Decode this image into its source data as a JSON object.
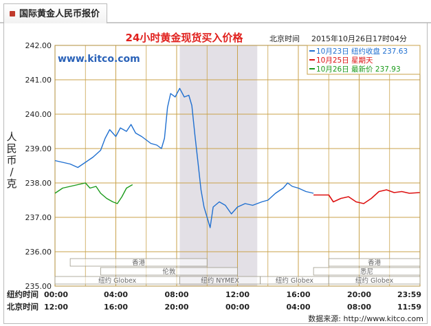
{
  "tab": {
    "label": "国际黄金人民币报价"
  },
  "chart_data": {
    "type": "line",
    "title": "24小时黄金现货买入价格",
    "watermark": "www.kitco.com",
    "timestamp_label": "北京时间",
    "timestamp_value": "2015年10月26日17时04分",
    "ylabel": "人民币/克",
    "ylim": [
      235.0,
      242.0
    ],
    "y_ticks": [
      "242.00",
      "241.00",
      "240.00",
      "239.00",
      "238.00",
      "237.00",
      "236.00",
      "235.00"
    ],
    "x_rows": [
      {
        "label": "纽约时间",
        "ticks": [
          "00:00",
          "04:00",
          "08:00",
          "12:00",
          "16:00",
          "20:00",
          "23:59"
        ]
      },
      {
        "label": "北京时间",
        "ticks": [
          "12:00",
          "16:00",
          "20:00",
          "00:00",
          "04:00",
          "08:00",
          "11:59"
        ]
      }
    ],
    "x_unit": "hours since 00:00 纽约时间",
    "shaded_x_range": [
      8.2,
      13.3
    ],
    "legend": [
      {
        "text": "10月23日  纽约收盘 237.63",
        "color": "#1f6fd0"
      },
      {
        "text": "10月25日  星期天",
        "color": "#dd1111"
      },
      {
        "text": "10月26日  最新价 237.93",
        "color": "#1a9a1a"
      }
    ],
    "series": [
      {
        "color": "#1f6fd0",
        "points": [
          [
            0,
            238.65
          ],
          [
            0.5,
            238.6
          ],
          [
            1,
            238.55
          ],
          [
            1.5,
            238.45
          ],
          [
            2,
            238.6
          ],
          [
            2.5,
            238.75
          ],
          [
            3,
            238.95
          ],
          [
            3.3,
            239.3
          ],
          [
            3.6,
            239.55
          ],
          [
            4,
            239.35
          ],
          [
            4.3,
            239.6
          ],
          [
            4.7,
            239.5
          ],
          [
            5,
            239.7
          ],
          [
            5.3,
            239.45
          ],
          [
            5.7,
            239.35
          ],
          [
            6,
            239.25
          ],
          [
            6.3,
            239.15
          ],
          [
            6.7,
            239.1
          ],
          [
            7,
            239.0
          ],
          [
            7.2,
            239.3
          ],
          [
            7.4,
            240.2
          ],
          [
            7.6,
            240.6
          ],
          [
            7.9,
            240.5
          ],
          [
            8.2,
            240.75
          ],
          [
            8.5,
            240.5
          ],
          [
            8.8,
            240.55
          ],
          [
            9.0,
            240.25
          ],
          [
            9.2,
            239.4
          ],
          [
            9.4,
            238.6
          ],
          [
            9.6,
            237.8
          ],
          [
            9.8,
            237.3
          ],
          [
            10.0,
            237.0
          ],
          [
            10.2,
            236.7
          ],
          [
            10.4,
            237.3
          ],
          [
            10.8,
            237.45
          ],
          [
            11.2,
            237.35
          ],
          [
            11.6,
            237.1
          ],
          [
            12.0,
            237.3
          ],
          [
            12.5,
            237.4
          ],
          [
            13.0,
            237.35
          ],
          [
            13.6,
            237.45
          ],
          [
            14.0,
            237.5
          ],
          [
            14.5,
            237.7
          ],
          [
            15.0,
            237.85
          ],
          [
            15.3,
            238.0
          ],
          [
            15.6,
            237.9
          ],
          [
            16.0,
            237.85
          ],
          [
            16.5,
            237.75
          ],
          [
            17.0,
            237.7
          ]
        ]
      },
      {
        "color": "#dd1111",
        "points": [
          [
            17.0,
            237.65
          ],
          [
            18.0,
            237.65
          ],
          [
            18.3,
            237.45
          ],
          [
            18.8,
            237.55
          ],
          [
            19.3,
            237.6
          ],
          [
            19.8,
            237.45
          ],
          [
            20.3,
            237.4
          ],
          [
            20.8,
            237.55
          ],
          [
            21.3,
            237.75
          ],
          [
            21.8,
            237.8
          ],
          [
            22.3,
            237.72
          ],
          [
            22.8,
            237.75
          ],
          [
            23.3,
            237.7
          ],
          [
            23.98,
            237.72
          ]
        ]
      },
      {
        "color": "#1a9a1a",
        "points": [
          [
            0,
            237.7
          ],
          [
            0.5,
            237.85
          ],
          [
            1,
            237.9
          ],
          [
            1.5,
            237.95
          ],
          [
            2,
            238.0
          ],
          [
            2.3,
            237.85
          ],
          [
            2.7,
            237.9
          ],
          [
            3,
            237.7
          ],
          [
            3.4,
            237.55
          ],
          [
            3.8,
            237.45
          ],
          [
            4.1,
            237.4
          ],
          [
            4.4,
            237.6
          ],
          [
            4.7,
            237.85
          ],
          [
            5.1,
            237.95
          ]
        ]
      }
    ],
    "market_bars": [
      {
        "name": "香港",
        "start": 1.0,
        "end": 10.0,
        "lane": 0
      },
      {
        "name": "香港",
        "start": 18.0,
        "end": 24.0,
        "lane": 0
      },
      {
        "name": "伦敦",
        "start": 3.0,
        "end": 12.0,
        "lane": 1
      },
      {
        "name": "悉尼",
        "start": 17.0,
        "end": 24.0,
        "lane": 1
      },
      {
        "name": "纽约 Globex",
        "start": 0,
        "end": 8.2,
        "lane": 2
      },
      {
        "name": "纽约 NYMEX",
        "start": 8.2,
        "end": 13.5,
        "lane": 2
      },
      {
        "name": "纽约 Globex",
        "start": 13.5,
        "end": 18.0,
        "lane": 2
      },
      {
        "name": "纽约 Globex",
        "start": 18.0,
        "end": 24.0,
        "lane": 2
      }
    ]
  },
  "footer": {
    "source": "数据来源: http://www.kitco.com"
  }
}
